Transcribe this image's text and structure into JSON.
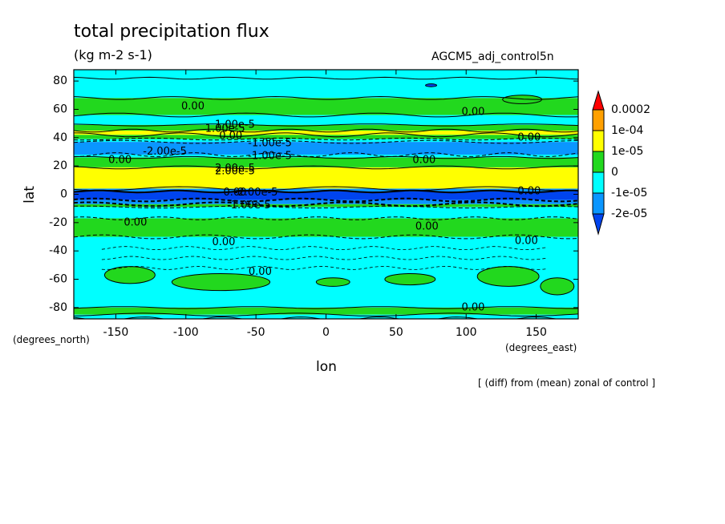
{
  "colors": {
    "red": "#ff0000",
    "orange": "#ffa000",
    "yellow": "#ffff00",
    "green": "#22d81e",
    "cyan": "#00ffff",
    "blue": "#0a96ff",
    "darkblue": "#0044ee"
  },
  "chart_data": {
    "type": "heatmap",
    "title": "total precipitation flux",
    "subtitle": "(kg m-2 s-1)",
    "dataset": "AGCM5_adj_control5n",
    "xlabel": "lon",
    "ylabel": "lat",
    "x_unit_label": "(degrees_east)",
    "y_unit_label": "(degrees_north)",
    "footer": "[ (diff) from (mean) zonal of control ]",
    "xlim": [
      -180,
      180
    ],
    "ylim": [
      -90,
      90
    ],
    "x_ticks": [
      -150,
      -100,
      -50,
      0,
      50,
      100,
      150
    ],
    "y_ticks": [
      -80,
      -60,
      -40,
      -20,
      0,
      20,
      40,
      60,
      80
    ],
    "x_tick_labels": [
      "-150",
      "-100",
      "-50",
      "0",
      "50",
      "100",
      "150"
    ],
    "y_tick_labels": [
      "-80",
      "-60",
      "-40",
      "-20",
      "0",
      "20",
      "40",
      "60",
      "80"
    ],
    "colorbar_levels": [
      "0.0002",
      "1e-04",
      "1e-05",
      "0",
      "-1e-05",
      "-2e-05"
    ],
    "bands": [
      {
        "lat_min": 82,
        "lat_max": 88,
        "level": "cyan"
      },
      {
        "lat_min": 68,
        "lat_max": 82,
        "level": "cyan"
      },
      {
        "lat_min": 56,
        "lat_max": 68,
        "level": "green"
      },
      {
        "lat_min": 49,
        "lat_max": 56,
        "level": "cyan"
      },
      {
        "lat_min": 45,
        "lat_max": 49,
        "level": "green"
      },
      {
        "lat_min": 42,
        "lat_max": 45,
        "level": "yellow"
      },
      {
        "lat_min": 39,
        "lat_max": 42,
        "level": "green"
      },
      {
        "lat_min": 37,
        "lat_max": 39,
        "level": "cyan"
      },
      {
        "lat_min": 28,
        "lat_max": 37,
        "level": "blue"
      },
      {
        "lat_min": 26,
        "lat_max": 28,
        "level": "cyan"
      },
      {
        "lat_min": 19,
        "lat_max": 26,
        "level": "green"
      },
      {
        "lat_min": 4,
        "lat_max": 19,
        "level": "yellow"
      },
      {
        "lat_min": 2,
        "lat_max": 4,
        "level": "blue"
      },
      {
        "lat_min": -4,
        "lat_max": 2,
        "level": "darkblue"
      },
      {
        "lat_min": -7,
        "lat_max": -4,
        "level": "blue"
      },
      {
        "lat_min": -9,
        "lat_max": -7,
        "level": "green"
      },
      {
        "lat_min": -17,
        "lat_max": -9,
        "level": "cyan"
      },
      {
        "lat_min": -30,
        "lat_max": -17,
        "level": "green"
      },
      {
        "lat_min": -80,
        "lat_max": -30,
        "level": "cyan"
      },
      {
        "lat_min": -85,
        "lat_max": -80,
        "level": "green"
      },
      {
        "lat_min": -88,
        "lat_max": -85,
        "level": "cyan"
      }
    ],
    "patches": [
      {
        "lon": -140,
        "lat": -57,
        "rx": 18,
        "ry": 6,
        "level": "green"
      },
      {
        "lon": -75,
        "lat": -62,
        "rx": 35,
        "ry": 6,
        "level": "green"
      },
      {
        "lon": 5,
        "lat": -62,
        "rx": 12,
        "ry": 3,
        "level": "green"
      },
      {
        "lon": 60,
        "lat": -60,
        "rx": 18,
        "ry": 4,
        "level": "green"
      },
      {
        "lon": 130,
        "lat": -58,
        "rx": 22,
        "ry": 7,
        "level": "green"
      },
      {
        "lon": 165,
        "lat": -65,
        "rx": 12,
        "ry": 6,
        "level": "green"
      },
      {
        "lon": 140,
        "lat": 67,
        "rx": 14,
        "ry": 3,
        "level": "green"
      },
      {
        "lon": 75,
        "lat": 77,
        "rx": 4,
        "ry": 1,
        "level": "darkblue"
      }
    ],
    "contour_labels": [
      {
        "text": "0.00",
        "lon": -95,
        "lat": 62
      },
      {
        "text": "0.00",
        "lon": 105,
        "lat": 58
      },
      {
        "text": "1.00e-5",
        "lon": -65,
        "lat": 49
      },
      {
        "text": "1.00e-5",
        "lon": -72,
        "lat": 46
      },
      {
        "text": "0.00",
        "lon": -68,
        "lat": 41
      },
      {
        "text": "0.00",
        "lon": 145,
        "lat": 40
      },
      {
        "text": "-1.00e-5",
        "lon": -40,
        "lat": 36
      },
      {
        "text": "-2.00e-5",
        "lon": -115,
        "lat": 30
      },
      {
        "text": "-1.00e-5",
        "lon": -40,
        "lat": 27
      },
      {
        "text": "0.00",
        "lon": -147,
        "lat": 24
      },
      {
        "text": "0.00",
        "lon": 70,
        "lat": 24
      },
      {
        "text": "2.00e-5",
        "lon": -65,
        "lat": 18
      },
      {
        "text": "2.00e-5",
        "lon": -65,
        "lat": 16
      },
      {
        "text": "0.00",
        "lon": -65,
        "lat": 1
      },
      {
        "text": "-2.00e-5",
        "lon": -50,
        "lat": 1
      },
      {
        "text": "0.00",
        "lon": 145,
        "lat": 2
      },
      {
        "text": "-1.00e-5",
        "lon": -55,
        "lat": -8
      },
      {
        "text": "0.00",
        "lon": -136,
        "lat": -20
      },
      {
        "text": "0.00",
        "lon": 72,
        "lat": -23
      },
      {
        "text": "0.00",
        "lon": -73,
        "lat": -34
      },
      {
        "text": "0.00",
        "lon": 143,
        "lat": -33
      },
      {
        "text": "0.00",
        "lon": -47,
        "lat": -55
      },
      {
        "text": "0.00",
        "lon": 105,
        "lat": -80
      }
    ]
  }
}
